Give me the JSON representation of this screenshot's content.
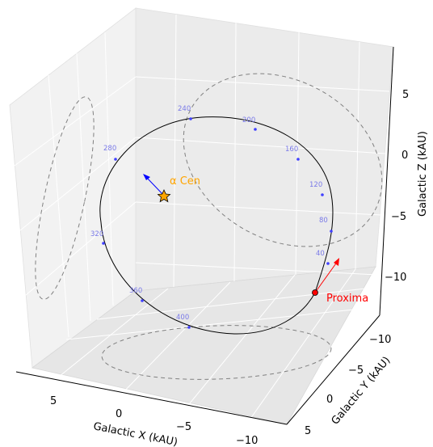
{
  "chart_data": {
    "type": "3d-line",
    "xlabel": "Galactic X (kAU)",
    "ylabel": "Galactic Y (kAU)",
    "zlabel": "Galactic Z (kAU)",
    "x_ticks": [
      "5",
      "0",
      "−5",
      "−10"
    ],
    "y_ticks": [
      "−10",
      "−5",
      "0",
      "5"
    ],
    "z_ticks": [
      "5",
      "0",
      "−5",
      "−10"
    ],
    "series": [
      {
        "name": "Proxima",
        "color": "#ff0000",
        "epoch_labels": [
          "40",
          "80",
          "120",
          "160",
          "200",
          "240",
          "280",
          "320",
          "360",
          "400"
        ],
        "epoch_marker_color": "#4040ff",
        "orbit_color": "#000000",
        "projection_color": "#808080"
      },
      {
        "name": "α Cen",
        "color": "#ffa500",
        "velocity_arrow_color": "#0000ff"
      }
    ],
    "grid": true,
    "background": "3d-pane"
  }
}
